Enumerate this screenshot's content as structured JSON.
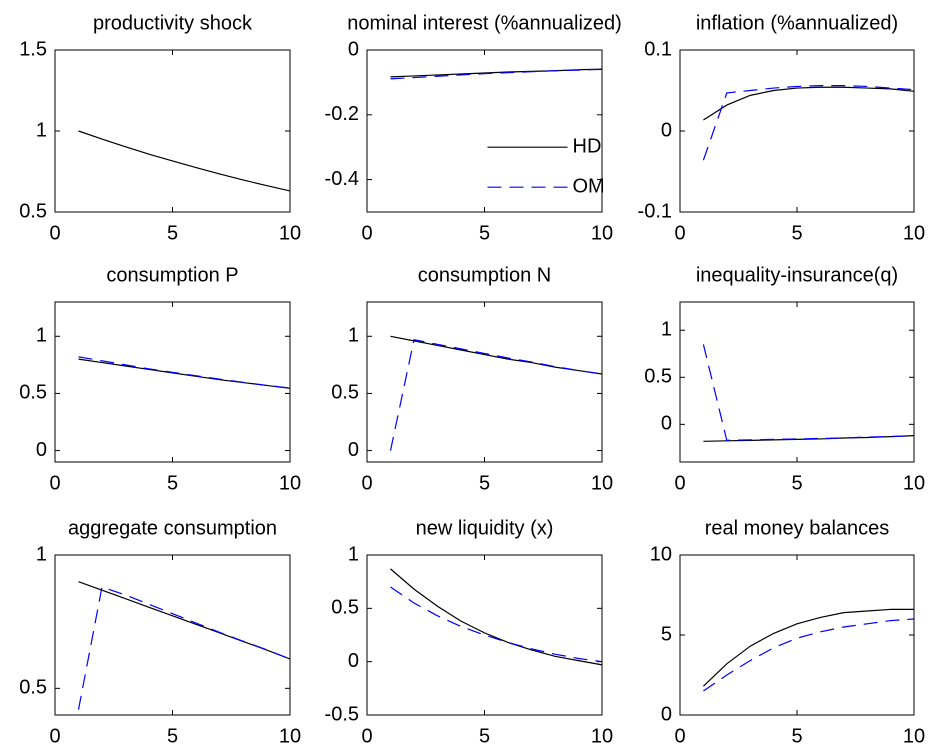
{
  "chart_data": [
    {
      "type": "line",
      "title": "productivity shock",
      "x": [
        1,
        2,
        3,
        4,
        5,
        6,
        7,
        8,
        9,
        10
      ],
      "xlim": [
        0,
        10
      ],
      "xticks": [
        0,
        5,
        10
      ],
      "ylim": [
        0.5,
        1.5
      ],
      "yticks": [
        0.5,
        1,
        1.5
      ],
      "series": [
        {
          "color": "#000000",
          "linestyle": "solid",
          "values": [
            1,
            0.95,
            0.9025,
            0.857,
            0.815,
            0.774,
            0.735,
            0.698,
            0.663,
            0.63
          ]
        }
      ]
    },
    {
      "type": "line",
      "title": "nominal interest (%annualized)",
      "x": [
        1,
        2,
        3,
        4,
        5,
        6,
        7,
        8,
        9,
        10
      ],
      "xlim": [
        0,
        10
      ],
      "xticks": [
        0,
        5,
        10
      ],
      "ylim": [
        -0.5,
        0
      ],
      "yticks": [
        -0.4,
        -0.2,
        0
      ],
      "series": [
        {
          "name": "HD",
          "color": "#000000",
          "linestyle": "solid",
          "values": [
            -0.083,
            -0.08,
            -0.077,
            -0.074,
            -0.071,
            -0.068,
            -0.066,
            -0.064,
            -0.061,
            -0.059
          ]
        },
        {
          "name": "OM",
          "color": "#0000ff",
          "linestyle": "dashed",
          "values": [
            -0.089,
            -0.085,
            -0.081,
            -0.077,
            -0.073,
            -0.07,
            -0.067,
            -0.064,
            -0.062,
            -0.06
          ]
        }
      ]
    },
    {
      "type": "line",
      "title": "inflation (%annualized)",
      "x": [
        1,
        2,
        3,
        4,
        5,
        6,
        7,
        8,
        9,
        10
      ],
      "xlim": [
        0,
        10
      ],
      "xticks": [
        0,
        5,
        10
      ],
      "ylim": [
        -0.1,
        0.1
      ],
      "yticks": [
        -0.1,
        0,
        0.1
      ],
      "series": [
        {
          "color": "#000000",
          "linestyle": "solid",
          "values": [
            0.0136,
            0.032,
            0.044,
            0.05,
            0.053,
            0.054,
            0.054,
            0.053,
            0.052,
            0.049
          ]
        },
        {
          "color": "#0000ff",
          "linestyle": "dashed",
          "values": [
            -0.036,
            0.047,
            0.05,
            0.053,
            0.055,
            0.056,
            0.056,
            0.055,
            0.053,
            0.051
          ]
        }
      ]
    },
    {
      "type": "line",
      "title": "consumption P",
      "x": [
        1,
        2,
        3,
        4,
        5,
        6,
        7,
        8,
        9,
        10
      ],
      "xlim": [
        0,
        10
      ],
      "xticks": [
        0,
        5,
        10
      ],
      "ylim": [
        -0.1,
        1.3
      ],
      "yticks": [
        0,
        0.5,
        1
      ],
      "series": [
        {
          "color": "#000000",
          "linestyle": "solid",
          "values": [
            0.8,
            0.77,
            0.74,
            0.71,
            0.68,
            0.65,
            0.62,
            0.595,
            0.57,
            0.545
          ]
        },
        {
          "color": "#0000ff",
          "linestyle": "dashed",
          "values": [
            0.82,
            0.785,
            0.75,
            0.715,
            0.685,
            0.655,
            0.625,
            0.597,
            0.571,
            0.547
          ]
        }
      ]
    },
    {
      "type": "line",
      "title": "consumption N",
      "x": [
        1,
        2,
        3,
        4,
        5,
        6,
        7,
        8,
        9,
        10
      ],
      "xlim": [
        0,
        10
      ],
      "xticks": [
        0,
        5,
        10
      ],
      "ylim": [
        -0.1,
        1.3
      ],
      "yticks": [
        0,
        0.5,
        1
      ],
      "series": [
        {
          "color": "#000000",
          "linestyle": "solid",
          "values": [
            1,
            0.96,
            0.92,
            0.88,
            0.84,
            0.8,
            0.77,
            0.73,
            0.7,
            0.67
          ]
        },
        {
          "color": "#0000ff",
          "linestyle": "dashed",
          "values": [
            0,
            0.97,
            0.93,
            0.89,
            0.85,
            0.81,
            0.775,
            0.735,
            0.7,
            0.67
          ]
        }
      ]
    },
    {
      "type": "line",
      "title": "inequality-insurance(q)",
      "x": [
        1,
        2,
        3,
        4,
        5,
        6,
        7,
        8,
        9,
        10
      ],
      "xlim": [
        0,
        10
      ],
      "xticks": [
        0,
        5,
        10
      ],
      "ylim": [
        -0.4,
        1.3
      ],
      "yticks": [
        0,
        0.5,
        1
      ],
      "series": [
        {
          "color": "#000000",
          "linestyle": "solid",
          "values": [
            -0.18,
            -0.175,
            -0.17,
            -0.165,
            -0.16,
            -0.155,
            -0.145,
            -0.14,
            -0.13,
            -0.12
          ]
        },
        {
          "color": "#0000ff",
          "linestyle": "dashed",
          "values": [
            0.85,
            -0.17,
            -0.165,
            -0.16,
            -0.155,
            -0.15,
            -0.145,
            -0.135,
            -0.13,
            -0.12
          ]
        }
      ]
    },
    {
      "type": "line",
      "title": "aggregate consumption",
      "x": [
        1,
        2,
        3,
        4,
        5,
        6,
        7,
        8,
        9,
        10
      ],
      "xlim": [
        0,
        10
      ],
      "xticks": [
        0,
        5,
        10
      ],
      "ylim": [
        0.4,
        1
      ],
      "yticks": [
        0.5,
        1
      ],
      "series": [
        {
          "color": "#000000",
          "linestyle": "solid",
          "values": [
            0.9,
            0.868,
            0.836,
            0.804,
            0.772,
            0.74,
            0.708,
            0.676,
            0.644,
            0.61
          ]
        },
        {
          "color": "#0000ff",
          "linestyle": "dashed",
          "values": [
            0.42,
            0.88,
            0.85,
            0.815,
            0.78,
            0.745,
            0.71,
            0.677,
            0.645,
            0.61
          ]
        }
      ]
    },
    {
      "type": "line",
      "title": "new liquidity (x)",
      "x": [
        1,
        2,
        3,
        4,
        5,
        6,
        7,
        8,
        9,
        10
      ],
      "xlim": [
        0,
        10
      ],
      "xticks": [
        0,
        5,
        10
      ],
      "ylim": [
        -0.5,
        1
      ],
      "yticks": [
        -0.5,
        0,
        0.5,
        1
      ],
      "series": [
        {
          "color": "#000000",
          "linestyle": "solid",
          "values": [
            0.87,
            0.68,
            0.52,
            0.38,
            0.27,
            0.18,
            0.11,
            0.05,
            0.01,
            -0.03
          ]
        },
        {
          "color": "#0000ff",
          "linestyle": "dashed",
          "values": [
            0.7,
            0.55,
            0.43,
            0.33,
            0.25,
            0.18,
            0.12,
            0.07,
            0.03,
            0
          ]
        }
      ]
    },
    {
      "type": "line",
      "title": "real money balances",
      "x": [
        1,
        2,
        3,
        4,
        5,
        6,
        7,
        8,
        9,
        10
      ],
      "xlim": [
        0,
        10
      ],
      "xticks": [
        0,
        5,
        10
      ],
      "ylim": [
        0,
        10
      ],
      "yticks": [
        0,
        5,
        10
      ],
      "series": [
        {
          "color": "#000000",
          "linestyle": "solid",
          "values": [
            1.8,
            3.2,
            4.3,
            5.1,
            5.7,
            6.1,
            6.4,
            6.5,
            6.6,
            6.6
          ]
        },
        {
          "color": "#0000ff",
          "linestyle": "dashed",
          "values": [
            1.5,
            2.5,
            3.4,
            4.2,
            4.8,
            5.2,
            5.5,
            5.7,
            5.9,
            6
          ]
        }
      ]
    }
  ]
}
